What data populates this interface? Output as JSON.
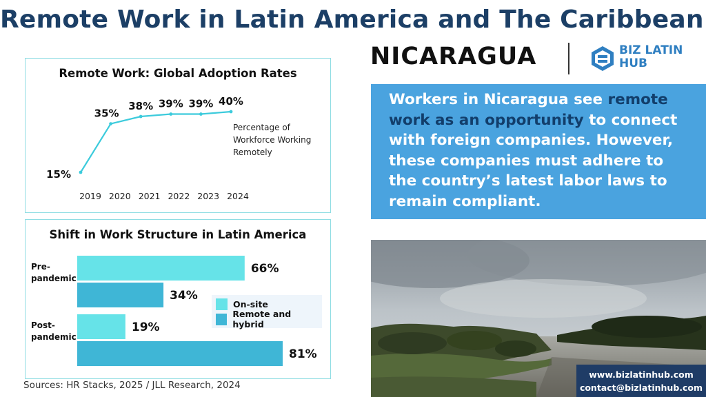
{
  "header": {
    "title": "Remote Work in Latin America and The Caribbean:",
    "country": "NICARAGUA"
  },
  "logo": {
    "line1": "BIZ LATIN",
    "line2": "HUB",
    "icon": "bizlatinhub-logo-icon"
  },
  "colors": {
    "title_blue": "#1c3f66",
    "line_teal": "#3ccbdc",
    "onsite": "#66e3e8",
    "remote_hybrid": "#3fb6d6",
    "info_box": "#4aa3df",
    "highlight": "#123e6b",
    "contact_bg": "#1f3c66"
  },
  "chart_data": [
    {
      "type": "line",
      "title": "Remote Work: Global Adoption Rates",
      "x": [
        "2019",
        "2020",
        "2021",
        "2022",
        "2023",
        "2024"
      ],
      "series": [
        {
          "values": [
            15,
            35,
            38,
            39,
            39,
            40
          ]
        }
      ],
      "data_labels": [
        "15%",
        "35%",
        "38%",
        "39%",
        "39%",
        "40%"
      ],
      "annotation": "Percentage of Workforce Working Remotely",
      "ylim": [
        15,
        40
      ],
      "grid": false
    },
    {
      "type": "bar",
      "orientation": "horizontal",
      "title": "Shift in Work Structure in Latin America",
      "categories": [
        "Pre-pandemic",
        "Post-pandemic"
      ],
      "category_lines": [
        [
          "Pre-",
          "pandemic"
        ],
        [
          "Post-",
          "pandemic"
        ]
      ],
      "series": [
        {
          "name": "On-site",
          "values": [
            66,
            19
          ],
          "labels": [
            "66%",
            "19%"
          ]
        },
        {
          "name": "Remote and hybrid",
          "values": [
            34,
            81
          ],
          "labels": [
            "34%",
            "81%"
          ]
        }
      ],
      "xlim": [
        0,
        81
      ],
      "legend": "right"
    }
  ],
  "info": {
    "part1": "Workers in Nicaragua see ",
    "highlight": "remote work as an opportunity",
    "part2": " to connect with foreign companies. However, these companies must adhere to the country’s latest labor laws to remain compliant."
  },
  "sources": "Sources: HR Stacks, 2025 /  JLL Research, 2024",
  "contact": {
    "website": "www.bizlatinhub.com",
    "email": "contact@bizlatinhub.com"
  }
}
